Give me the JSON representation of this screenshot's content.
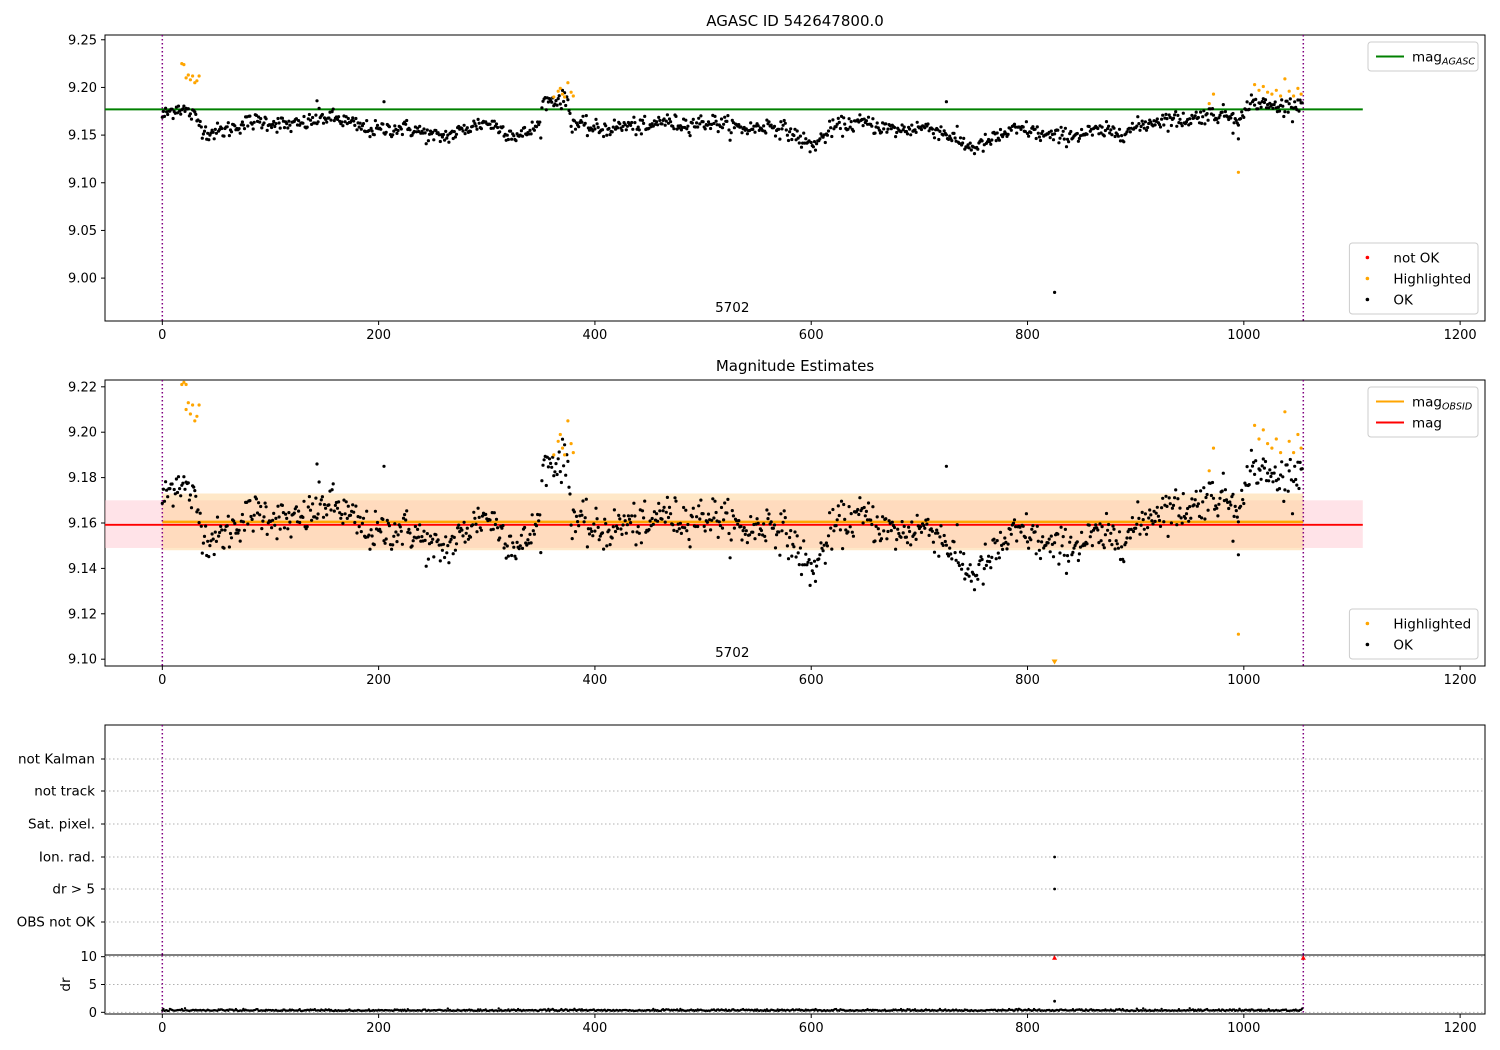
{
  "figure": {
    "title_top": "AGASC ID 542647800.0",
    "title_middle": "Magnitude Estimates"
  },
  "colors": {
    "ok": "#000000",
    "highlighted": "#ffa500",
    "not_ok": "#ff0000",
    "mag_agasc": "#008000",
    "mag_obsid": "#ffa500",
    "mag": "#ff0000",
    "obs_boundary": "#800080",
    "band_mag": "#ffc0cb",
    "band_obsid": "#ffd59a"
  },
  "chart_data": [
    {
      "type": "scatter",
      "title": "AGASC ID 542647800.0",
      "xlabel": "",
      "ylabel": "",
      "xlim": [
        -53,
        1223
      ],
      "ylim": [
        8.955,
        9.255
      ],
      "xticks": [
        0,
        200,
        400,
        600,
        800,
        1000,
        1200
      ],
      "yticks": [
        9.0,
        9.05,
        9.1,
        9.15,
        9.2,
        9.25
      ],
      "ytick_labels": [
        "9.00",
        "9.05",
        "9.10",
        "9.15",
        "9.20",
        "9.25"
      ],
      "obs_boundaries": [
        0,
        1055
      ],
      "obs_label": {
        "text": "5702",
        "x": 527
      },
      "reference_lines": [
        {
          "name": "mag_AGASC",
          "value": 9.177,
          "x_range": [
            -53,
            1110
          ]
        }
      ],
      "legends": [
        {
          "position": "top-right",
          "entries": [
            {
              "text": "mag",
              "sub": "AGASC",
              "kind": "line",
              "color_key": "mag_agasc"
            }
          ]
        },
        {
          "position": "lower-right",
          "entries": [
            {
              "text": "not OK",
              "kind": "dot",
              "color_key": "not_ok"
            },
            {
              "text": "Highlighted",
              "kind": "dot",
              "color_key": "highlighted"
            },
            {
              "text": "OK",
              "kind": "dot",
              "color_key": "ok"
            }
          ]
        }
      ],
      "series": [
        {
          "name": "OK",
          "color_key": "ok",
          "mode": "segments",
          "n": 1055,
          "segments": [
            [
              0,
              9.17
            ],
            [
              15,
              9.176
            ],
            [
              30,
              9.168
            ],
            [
              40,
              9.155
            ],
            [
              70,
              9.16
            ],
            [
              100,
              9.162
            ],
            [
              150,
              9.166
            ],
            [
              200,
              9.158
            ],
            [
              250,
              9.15
            ],
            [
              300,
              9.16
            ],
            [
              330,
              9.152
            ],
            [
              350,
              9.162
            ],
            [
              352,
              9.184
            ],
            [
              375,
              9.184
            ],
            [
              378,
              9.162
            ],
            [
              450,
              9.155
            ],
            [
              460,
              9.168
            ],
            [
              500,
              9.16
            ],
            [
              560,
              9.16
            ],
            [
              600,
              9.14
            ],
            [
              620,
              9.16
            ],
            [
              700,
              9.158
            ],
            [
              750,
              9.14
            ],
            [
              800,
              9.155
            ],
            [
              850,
              9.148
            ],
            [
              900,
              9.16
            ],
            [
              940,
              9.165
            ],
            [
              965,
              9.175
            ],
            [
              1000,
              9.165
            ],
            [
              1005,
              9.184
            ],
            [
              1055,
              9.182
            ]
          ],
          "noise": 0.008,
          "pattern_nudge": 0.0008,
          "extra": [
            [
              995,
              9.146
            ],
            [
              990,
              9.152
            ],
            [
              725,
              9.185
            ],
            [
              143,
              9.186
            ],
            [
              205,
              9.185
            ]
          ]
        },
        {
          "name": "Highlighted",
          "color_key": "highlighted",
          "points": [
            [
              18,
              9.225
            ],
            [
              20,
              9.224
            ],
            [
              22,
              9.21
            ],
            [
              24,
              9.213
            ],
            [
              26,
              9.208
            ],
            [
              28,
              9.212
            ],
            [
              30,
              9.205
            ],
            [
              32,
              9.207
            ],
            [
              34,
              9.212
            ],
            [
              362,
              9.19
            ],
            [
              366,
              9.196
            ],
            [
              368,
              9.199
            ],
            [
              370,
              9.193
            ],
            [
              372,
              9.19
            ],
            [
              375,
              9.205
            ],
            [
              378,
              9.195
            ],
            [
              380,
              9.191
            ],
            [
              968,
              9.183
            ],
            [
              972,
              9.193
            ],
            [
              995,
              9.111
            ],
            [
              1010,
              9.203
            ],
            [
              1014,
              9.197
            ],
            [
              1018,
              9.201
            ],
            [
              1022,
              9.195
            ],
            [
              1026,
              9.193
            ],
            [
              1030,
              9.197
            ],
            [
              1034,
              9.191
            ],
            [
              1038,
              9.209
            ],
            [
              1042,
              9.196
            ],
            [
              1046,
              9.191
            ],
            [
              1050,
              9.199
            ],
            [
              1053,
              9.193
            ]
          ]
        },
        {
          "name": "not OK",
          "color_key": "not_ok",
          "points": []
        },
        {
          "name": "outlier",
          "color_key": "ok",
          "points": [
            [
              825,
              8.985
            ]
          ]
        }
      ]
    },
    {
      "type": "scatter",
      "title": "Magnitude Estimates",
      "xlabel": "",
      "ylabel": "",
      "xlim": [
        -53,
        1223
      ],
      "ylim": [
        9.097,
        9.223
      ],
      "xticks": [
        0,
        200,
        400,
        600,
        800,
        1000,
        1200
      ],
      "yticks": [
        9.1,
        9.12,
        9.14,
        9.16,
        9.18,
        9.2,
        9.22
      ],
      "ytick_labels": [
        "9.10",
        "9.12",
        "9.14",
        "9.16",
        "9.18",
        "9.20",
        "9.22"
      ],
      "obs_boundaries": [
        0,
        1055
      ],
      "obs_label": {
        "text": "5702",
        "x": 527
      },
      "reference_lines": [
        {
          "name": "mag_OBSID",
          "value": 9.1605,
          "x_range": [
            0,
            1055
          ]
        },
        {
          "name": "mag",
          "value": 9.1592,
          "x_range": [
            -53,
            1110
          ]
        }
      ],
      "bands": [
        {
          "name": "mag",
          "range": [
            9.149,
            9.17
          ],
          "x_range": [
            -53,
            1110
          ]
        },
        {
          "name": "mag_OBSID",
          "range": [
            9.148,
            9.173
          ],
          "x_range": [
            0,
            1055
          ]
        }
      ],
      "legends": [
        {
          "position": "top-right",
          "entries": [
            {
              "text": "mag",
              "sub": "OBSID",
              "kind": "line",
              "color_key": "mag_obsid"
            },
            {
              "text": "mag",
              "kind": "line",
              "color_key": "mag"
            }
          ]
        },
        {
          "position": "lower-right",
          "entries": [
            {
              "text": "Highlighted",
              "kind": "dot",
              "color_key": "highlighted"
            },
            {
              "text": "OK",
              "kind": "dot",
              "color_key": "ok"
            }
          ]
        }
      ],
      "series": [
        {
          "name": "OK",
          "color_key": "ok",
          "same_as_panel": 0
        },
        {
          "name": "Highlighted",
          "color_key": "highlighted",
          "same_as_panel": 0,
          "points_extra": [
            [
              18,
              9.221
            ],
            [
              20,
              9.222
            ],
            [
              22,
              9.221
            ]
          ]
        },
        {
          "name": "outlier-marker",
          "color_key": "highlighted",
          "marker": "triangle-down",
          "points": [
            [
              825,
              9.099
            ]
          ]
        }
      ]
    },
    {
      "type": "scatter",
      "title": "",
      "xlabel": "",
      "ylabel": "",
      "xlim": [
        -53,
        1223
      ],
      "categories": [
        "not Kalman",
        "not track",
        "Sat. pixel.",
        "Ion. rad.",
        "dr > 5",
        "OBS not OK"
      ],
      "obs_boundaries": [
        0,
        1055
      ],
      "series": [
        {
          "name": "flags",
          "color_key": "ok",
          "points": [
            [
              825,
              "Ion. rad."
            ],
            [
              825,
              "dr > 5"
            ]
          ]
        }
      ]
    },
    {
      "type": "scatter",
      "title": "",
      "xlabel": "",
      "ylabel": "dr",
      "xlim": [
        -53,
        1223
      ],
      "ylim": [
        -0.3,
        10.3
      ],
      "xticks": [
        0,
        200,
        400,
        600,
        800,
        1000,
        1200
      ],
      "yticks": [
        0,
        5,
        10
      ],
      "ytick_labels": [
        "0",
        "5",
        "10"
      ],
      "obs_boundaries": [
        0,
        1055
      ],
      "series": [
        {
          "name": "dr",
          "color_key": "ok",
          "mode": "flat",
          "n": 1055,
          "base": 0.25,
          "noise": 0.25
        },
        {
          "name": "dr-outlier",
          "color_key": "ok",
          "points": [
            [
              825,
              2.0
            ]
          ]
        },
        {
          "name": "dr-clipped",
          "color_key": "not_ok",
          "marker": "triangle-up",
          "points": [
            [
              825,
              9.8
            ],
            [
              1055,
              9.8
            ]
          ]
        }
      ]
    }
  ]
}
